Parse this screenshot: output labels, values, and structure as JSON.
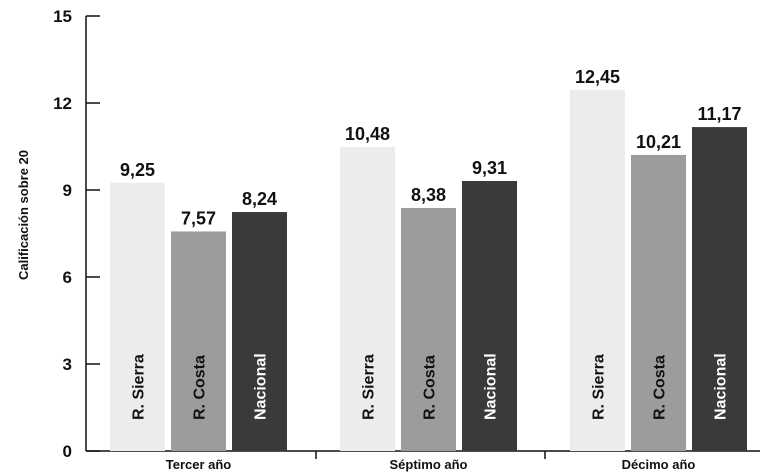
{
  "chart_data": {
    "type": "bar",
    "title": "",
    "ylabel": "Calificación sobre 20",
    "xlabel": "",
    "ylim": [
      0,
      15
    ],
    "yticks": [
      "0",
      "3",
      "6",
      "9",
      "12",
      "15"
    ],
    "categories": [
      "Tercer año",
      "Séptimo año",
      "Décimo año"
    ],
    "grid": false,
    "legend": "none",
    "series": [
      {
        "name": "R. Sierra",
        "color": "#ececec",
        "label_color": "#111111",
        "values": [
          9.25,
          10.48,
          12.45
        ],
        "labels": [
          "9,25",
          "10,48",
          "12,45"
        ]
      },
      {
        "name": "R. Costa",
        "color": "#9c9c9c",
        "label_color": "#111111",
        "values": [
          7.57,
          8.38,
          10.21
        ],
        "labels": [
          "7,57",
          "8,38",
          "10,21"
        ]
      },
      {
        "name": "Nacional",
        "color": "#3a3a3a",
        "label_color": "#ffffff",
        "values": [
          8.24,
          9.31,
          11.17
        ],
        "labels": [
          "8,24",
          "9,31",
          "11,17"
        ]
      }
    ]
  }
}
